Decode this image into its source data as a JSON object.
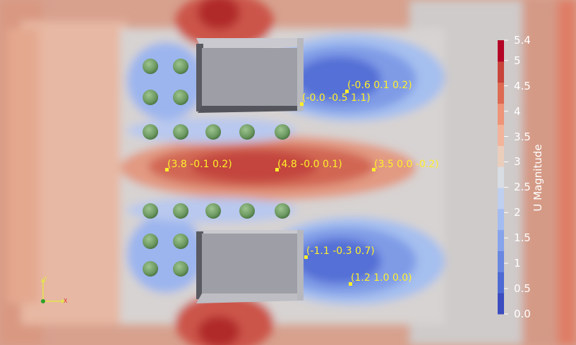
{
  "colorbar": {
    "title": "U Magnitude",
    "range": [
      0.0,
      5.4
    ],
    "ticks": [
      "0.0",
      "0.5",
      "1",
      "1.5",
      "2",
      "2.5",
      "3",
      "3.5",
      "4",
      "4.5",
      "5",
      "5.4"
    ],
    "colors": [
      "#3b4cc0",
      "#4e6ad4",
      "#6a88e2",
      "#87a3ec",
      "#a3bcf1",
      "#bfcfef",
      "#d8dce3",
      "#ebcdbc",
      "#f2b49a",
      "#ee9479",
      "#de6a52",
      "#c8433a",
      "#b40426"
    ]
  },
  "probes": [
    {
      "text": "(-0.6 0.1 0.2)"
    },
    {
      "text": "(-0.0 -0.5 1.1)"
    },
    {
      "text": "(3.8 -0.1 0.2)"
    },
    {
      "text": "(4.8 -0.0 0.1)"
    },
    {
      "text": "(3.5 0.0 -0.2)"
    },
    {
      "text": "(-1.1 -0.3 0.7)"
    },
    {
      "text": "(1.2 1.0 0.0)"
    }
  ],
  "axes": {
    "y": "Y",
    "x": "X"
  },
  "colors": {
    "label": "#ffef2a",
    "box": "#9e9ea6",
    "sphere": "#73a066"
  }
}
